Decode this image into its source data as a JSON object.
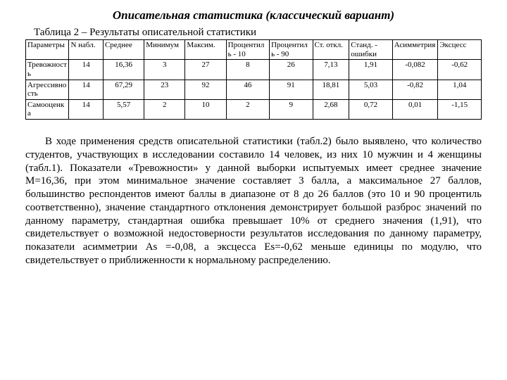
{
  "title": "Описательная статистика (классический вариант)",
  "caption": "Таблица 2 – Результаты описательной статистики",
  "table": {
    "columns": [
      "Параметры",
      "N набл.",
      "Среднее",
      "Минимум",
      "Максим.",
      "Процентиль - 10",
      "Процентиль - 90",
      "Ст. откл.",
      "Станд. - ошибки",
      "Асимметрия",
      "Эксцесс"
    ],
    "col_widths_pct": [
      9.5,
      7.5,
      9,
      9,
      9,
      9.5,
      9.5,
      8,
      9.5,
      10,
      9.5
    ],
    "rows": [
      [
        "Тревожность",
        "14",
        "16,36",
        "3",
        "27",
        "8",
        "26",
        "7,13",
        "1,91",
        "-0,082",
        "-0,62"
      ],
      [
        "Агрессивность",
        "14",
        "67,29",
        "23",
        "92",
        "46",
        "91",
        "18,81",
        "5,03",
        "-0,82",
        "1,04"
      ],
      [
        "Самооценка",
        "14",
        "5,57",
        "2",
        "10",
        "2",
        "9",
        "2,68",
        "0,72",
        "0,01",
        "-1,15"
      ]
    ],
    "header_bg": "#ffffff",
    "border_color": "#000000",
    "font_size_pt": 11
  },
  "paragraph": "В ходе применения средств описательной статистики (табл.2) было выявлено, что количество студентов, участвующих в исследовании составило 14 человек, из них 10 мужчин и 4 женщины (табл.1). Показатели «Тревожности» у данной выборки испытуемых имеет среднее значение М=16,36, при этом минимальное значение составляет 3 балла, а максимальное 27 баллов, большинство респондентов имеют баллы в диапазоне от 8 до 26 баллов (это 10 и 90 процентиль соответственно), значение стандартного отклонения демонстрирует большой разброс значений по данному параметру, стандартная ошибка превышает 10% от среднего значения (1,91), что свидетельствует о возможной недостоверности результатов исследования по данному параметру, показатели асимметрии As =-0,08, а эксцесса Es=-0,62 меньше единицы по модулю, что свидетельствует о приближенности к нормальному распределению.",
  "colors": {
    "background": "#ffffff",
    "text": "#000000"
  },
  "typography": {
    "font_family": "Times New Roman",
    "title_size_pt": 17,
    "caption_size_pt": 15,
    "body_size_pt": 15
  }
}
